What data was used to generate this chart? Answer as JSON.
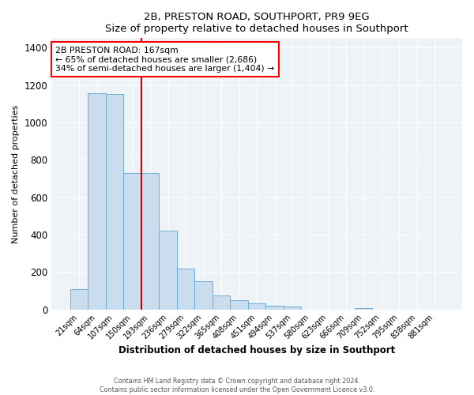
{
  "title": "2B, PRESTON ROAD, SOUTHPORT, PR9 9EG",
  "subtitle": "Size of property relative to detached houses in Southport",
  "xlabel": "Distribution of detached houses by size in Southport",
  "ylabel": "Number of detached properties",
  "bar_labels": [
    "21sqm",
    "64sqm",
    "107sqm",
    "150sqm",
    "193sqm",
    "236sqm",
    "279sqm",
    "322sqm",
    "365sqm",
    "408sqm",
    "451sqm",
    "494sqm",
    "537sqm",
    "580sqm",
    "623sqm",
    "666sqm",
    "709sqm",
    "752sqm",
    "795sqm",
    "838sqm",
    "881sqm"
  ],
  "bar_heights": [
    110,
    1155,
    1150,
    730,
    730,
    420,
    220,
    150,
    75,
    50,
    30,
    20,
    15,
    0,
    0,
    0,
    5,
    0,
    0,
    0,
    0
  ],
  "bar_color": "#c9ddef",
  "bar_edge_color": "#6aaed6",
  "vline_x": 3.5,
  "vline_color": "#cc0000",
  "annotation_title": "2B PRESTON ROAD: 167sqm",
  "annotation_line1": "← 65% of detached houses are smaller (2,686)",
  "annotation_line2": "34% of semi-detached houses are larger (1,404) →",
  "annotation_box_edge": "red",
  "ylim": [
    0,
    1450
  ],
  "yticks": [
    0,
    200,
    400,
    600,
    800,
    1000,
    1200,
    1400
  ],
  "footer1": "Contains HM Land Registry data © Crown copyright and database right 2024.",
  "footer2": "Contains public sector information licensed under the Open Government Licence v3.0.",
  "bg_color": "#eef3f8"
}
